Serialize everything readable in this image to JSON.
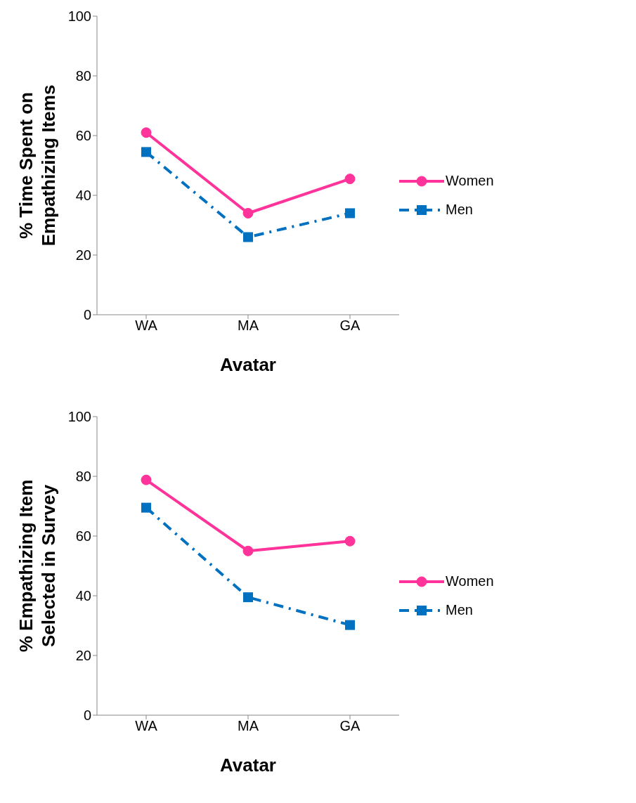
{
  "chart_data": [
    {
      "type": "line",
      "xlabel": "Avatar",
      "ylabel": "% Time Spent on Empathizing Items",
      "categories": [
        "WA",
        "MA",
        "GA"
      ],
      "ylim": [
        0,
        100
      ],
      "yticks": [
        0,
        20,
        40,
        60,
        80,
        100
      ],
      "grid": false,
      "legend": "right",
      "series": [
        {
          "name": "Women",
          "color": "#ff3399",
          "values": [
            61,
            34,
            45.5
          ],
          "marker": "circle",
          "line_style": "solid"
        },
        {
          "name": "Men",
          "color": "#0070c0",
          "values": [
            54.5,
            26,
            34
          ],
          "marker": "square",
          "line_style": "dashed"
        }
      ]
    },
    {
      "type": "line",
      "xlabel": "Avatar",
      "ylabel": "% Empathizing Item Selected in Survey",
      "categories": [
        "WA",
        "MA",
        "GA"
      ],
      "ylim": [
        0,
        100
      ],
      "yticks": [
        0,
        20,
        40,
        60,
        80,
        100
      ],
      "grid": false,
      "legend": "right",
      "series": [
        {
          "name": "Women",
          "color": "#ff3399",
          "values": [
            78.8,
            55,
            58.3
          ],
          "marker": "circle",
          "line_style": "solid"
        },
        {
          "name": "Men",
          "color": "#0070c0",
          "values": [
            69.5,
            39.5,
            30.2
          ],
          "marker": "square",
          "line_style": "dashed"
        }
      ]
    }
  ]
}
